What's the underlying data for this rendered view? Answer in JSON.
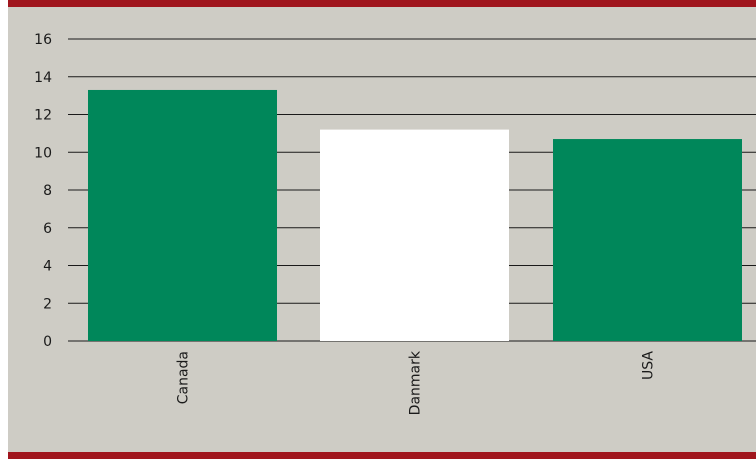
{
  "chart_data": {
    "type": "bar",
    "categories": [
      "Canada",
      "Danmark",
      "USA"
    ],
    "values": [
      13.3,
      11.2,
      10.7
    ],
    "title": "",
    "xlabel": "",
    "ylabel": "",
    "ylim": [
      0,
      16
    ],
    "yticks": [
      0,
      2,
      4,
      6,
      8,
      10,
      12,
      14,
      16
    ],
    "grid": true,
    "legend": "none"
  },
  "colors": {
    "background": "#ceccc5",
    "frame": "#a0151d",
    "bar": "#00875a",
    "highlight_bar": "#ffffff",
    "grid": "#1a1a1a",
    "text": "#1a1a1a"
  },
  "bar_colors": [
    "#00875a",
    "#ffffff",
    "#00875a"
  ]
}
